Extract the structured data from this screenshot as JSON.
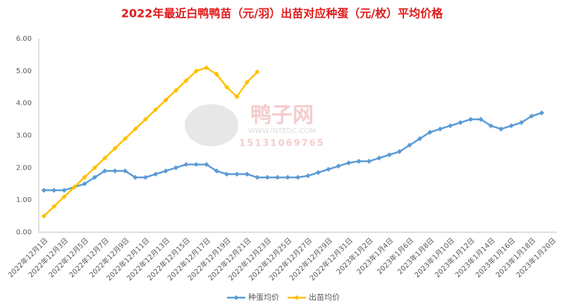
{
  "chart_data": {
    "type": "line",
    "title": "2022年最近白鸭鸭苗（元/羽）出苗对应种蛋（元/枚）平均价格",
    "categories": [
      "2022年12月1日",
      null,
      "2022年12月3日",
      null,
      "2022年12月5日",
      null,
      "2022年12月7日",
      null,
      "2022年12月9日",
      null,
      "2022年12月11日",
      null,
      "2022年12月13日",
      null,
      "2022年12月15日",
      null,
      "2022年12月17日",
      null,
      "2022年12月19日",
      null,
      "2022年12月21日",
      null,
      "2022年12月23日",
      null,
      "2022年12月25日",
      null,
      "2022年12月27日",
      null,
      "2022年12月29日",
      null,
      "2022年12月31日",
      null,
      "2023年1月2日",
      null,
      "2023年1月4日",
      null,
      "2023年1月6日",
      null,
      "2023年1月8日",
      null,
      "2023年1月10日",
      null,
      "2023年1月12日",
      null,
      "2023年1月14日",
      null,
      "2023年1月16日",
      null,
      "2023年1月18日",
      null,
      "2023年1月20日"
    ],
    "series": [
      {
        "name": "种蛋均价",
        "color": "#5b9bd5",
        "values": [
          1.3,
          1.3,
          1.3,
          1.4,
          1.5,
          1.7,
          1.9,
          1.9,
          1.9,
          1.7,
          1.7,
          1.8,
          1.9,
          2.0,
          2.1,
          2.1,
          2.1,
          1.9,
          1.8,
          1.8,
          1.8,
          1.7,
          1.7,
          1.7,
          1.7,
          1.7,
          1.75,
          1.85,
          1.95,
          2.05,
          2.15,
          2.2,
          2.2,
          2.3,
          2.4,
          2.5,
          2.7,
          2.9,
          3.1,
          3.2,
          3.3,
          3.4,
          3.5,
          3.5,
          3.3,
          3.2,
          3.3,
          3.4,
          3.6,
          3.7,
          null
        ]
      },
      {
        "name": "出苗均价",
        "color": "#ffc000",
        "values": [
          0.5,
          0.8,
          1.1,
          1.4,
          1.7,
          2.0,
          2.3,
          2.6,
          2.9,
          3.2,
          3.5,
          3.8,
          4.1,
          4.4,
          4.7,
          5.0,
          5.1,
          4.9,
          4.5,
          4.2,
          4.65,
          4.97,
          null,
          null,
          null,
          null,
          null,
          null,
          null,
          null,
          null,
          null,
          null,
          null,
          null,
          null,
          null,
          null,
          null,
          null,
          null,
          null,
          null,
          null,
          null,
          null,
          null,
          null,
          null,
          null,
          null
        ]
      }
    ],
    "ylim": [
      0,
      6
    ],
    "yticks": [
      {
        "value": 0,
        "label": "0.00"
      },
      {
        "value": 1,
        "label": "1.00"
      },
      {
        "value": 2,
        "label": "2.00"
      },
      {
        "value": 3,
        "label": "3.00"
      },
      {
        "value": 4,
        "label": "4.00"
      },
      {
        "value": 5,
        "label": "5.00"
      },
      {
        "value": 6,
        "label": "6.00"
      }
    ],
    "legend": "bottom",
    "watermark": [
      "鸭子网",
      "WWW.INTEDC.COM",
      "15131069765"
    ]
  }
}
